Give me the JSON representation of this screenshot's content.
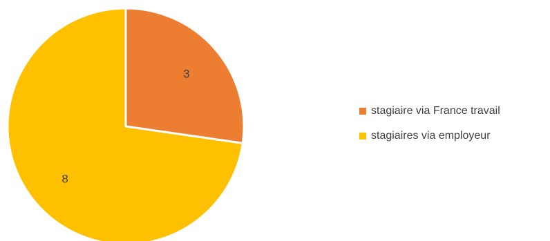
{
  "chart_data": {
    "type": "pie",
    "title": "",
    "categories": [
      "stagiaire via France travail",
      "stagiaires via employeur"
    ],
    "values": [
      3,
      8
    ],
    "colors": [
      "#ED7D31",
      "#FFC000"
    ],
    "start_angle_deg": 0,
    "direction": "clockwise",
    "data_labels": [
      "3",
      "8"
    ],
    "legend_position": "right",
    "grid": false
  }
}
